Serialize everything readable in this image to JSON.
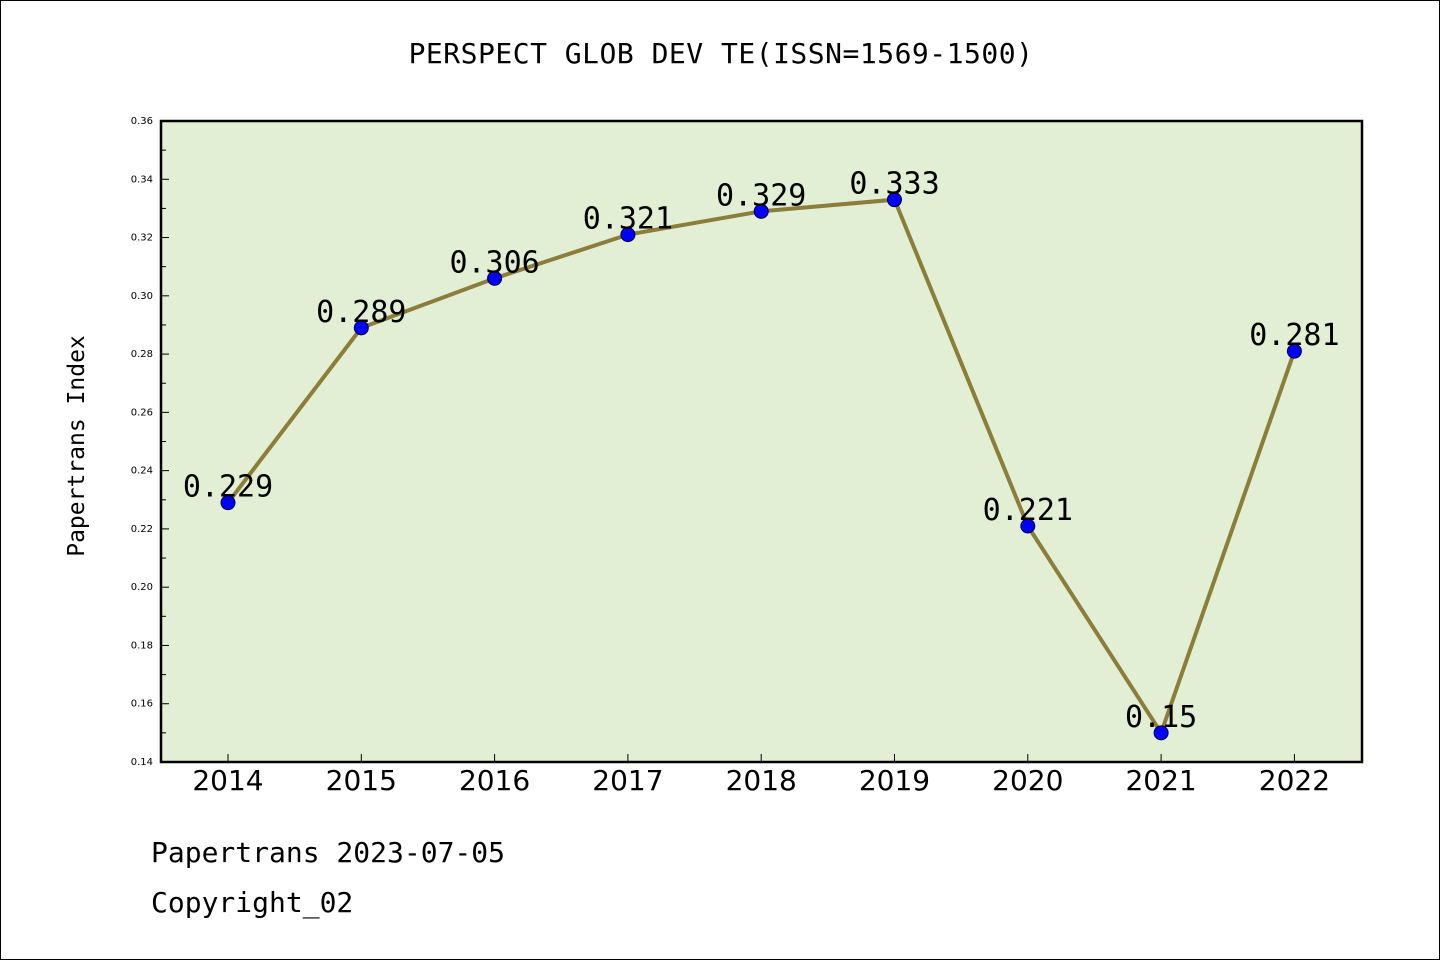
{
  "chart_data": {
    "type": "line",
    "title": "PERSPECT GLOB DEV TE(ISSN=1569-1500)",
    "xlabel": "",
    "ylabel": "Papertrans Index",
    "categories": [
      "2014",
      "2015",
      "2016",
      "2017",
      "2018",
      "2019",
      "2020",
      "2021",
      "2022"
    ],
    "series": [
      {
        "values": [
          0.229,
          0.289,
          0.306,
          0.321,
          0.329,
          0.333,
          0.221,
          0.15,
          0.281
        ],
        "data_labels": [
          "0.229",
          "0.289",
          "0.306",
          "0.321",
          "0.329",
          "0.333",
          "0.221",
          "0.15",
          "0.281"
        ]
      }
    ],
    "ylim": [
      0.14,
      0.36
    ],
    "yticks": [
      "0.14",
      "0.16",
      "0.18",
      "0.20",
      "0.22",
      "0.24",
      "0.26",
      "0.28",
      "0.30",
      "0.32",
      "0.34",
      "0.36"
    ],
    "grid": false,
    "legend": "none",
    "colors": {
      "plot_background": "#e2efd5",
      "line": "#8b7d3a",
      "marker": "#0000ff"
    }
  },
  "footer": {
    "line1": "Papertrans 2023-07-05",
    "line2": "Copyright_02"
  }
}
